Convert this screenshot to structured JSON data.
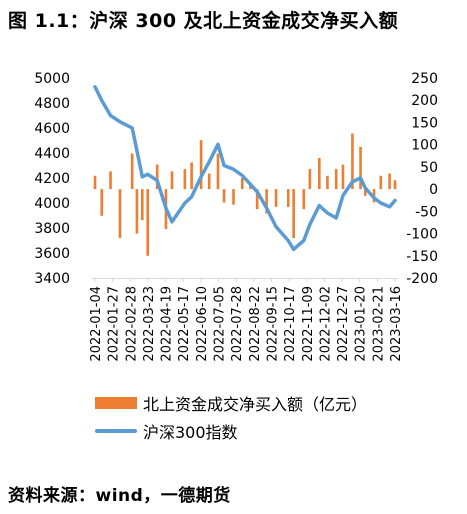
{
  "header": {
    "title": "图 1.1：沪深 300 及北上资金成交净买入额"
  },
  "footer": {
    "source": "资料来源：wind，一德期货"
  },
  "colors": {
    "bar": "#ED7D31",
    "line": "#5B9BD5",
    "axis": "#d9d9d9"
  },
  "chart_data": {
    "type": "bar+line",
    "title": "",
    "x_tick_labels": [
      "2022-01-04",
      "2022-01-27",
      "2022-02-28",
      "2022-03-23",
      "2022-04-19",
      "2022-05-17",
      "2022-06-10",
      "2022-07-05",
      "2022-07-28",
      "2022-08-22",
      "2022-09-15",
      "2022-10-17",
      "2022-11-09",
      "2022-12-02",
      "2022-12-27",
      "2023-01-20",
      "2023-02-21",
      "2023-03-16"
    ],
    "y_left": {
      "min": 3400,
      "max": 5000,
      "step": 200,
      "ticks": [
        "3400",
        "3600",
        "3800",
        "4000",
        "4200",
        "4400",
        "4600",
        "4800",
        "5000"
      ]
    },
    "y_right": {
      "min": -200,
      "max": 250,
      "step": 50,
      "ticks": [
        "-200",
        "-150",
        "-100",
        "-50",
        "0",
        "50",
        "100",
        "150",
        "200",
        "250"
      ]
    },
    "legend_position": "bottom",
    "series": [
      {
        "name": "北上资金成交净买入额（亿元）",
        "type": "bar",
        "axis": "right",
        "x": [
          "2022-01-04",
          "2022-01-14",
          "2022-01-27",
          "2022-02-10",
          "2022-02-28",
          "2022-03-07",
          "2022-03-15",
          "2022-03-23",
          "2022-04-06",
          "2022-04-19",
          "2022-04-28",
          "2022-05-17",
          "2022-05-27",
          "2022-06-10",
          "2022-06-22",
          "2022-07-05",
          "2022-07-14",
          "2022-07-28",
          "2022-08-10",
          "2022-08-22",
          "2022-09-01",
          "2022-09-15",
          "2022-09-29",
          "2022-10-17",
          "2022-10-25",
          "2022-11-09",
          "2022-11-18",
          "2022-12-02",
          "2022-12-14",
          "2022-12-27",
          "2023-01-06",
          "2023-01-20",
          "2023-02-01",
          "2023-02-08",
          "2023-02-21",
          "2023-03-03",
          "2023-03-16",
          "2023-03-24"
        ],
        "values": [
          30,
          -60,
          40,
          -110,
          80,
          -100,
          -70,
          -150,
          55,
          -90,
          40,
          45,
          60,
          110,
          35,
          80,
          -30,
          -35,
          25,
          15,
          -45,
          -55,
          -40,
          -40,
          -110,
          -45,
          45,
          70,
          30,
          45,
          55,
          125,
          95,
          -15,
          -30,
          30,
          35,
          20
        ]
      },
      {
        "name": "沪深300指数",
        "type": "line",
        "axis": "left",
        "x": [
          "2022-01-04",
          "2022-01-14",
          "2022-01-27",
          "2022-02-10",
          "2022-02-28",
          "2022-03-07",
          "2022-03-15",
          "2022-03-23",
          "2022-04-06",
          "2022-04-19",
          "2022-04-28",
          "2022-05-17",
          "2022-05-27",
          "2022-06-10",
          "2022-06-22",
          "2022-07-05",
          "2022-07-14",
          "2022-07-28",
          "2022-08-10",
          "2022-08-22",
          "2022-09-01",
          "2022-09-15",
          "2022-09-29",
          "2022-10-17",
          "2022-10-25",
          "2022-11-09",
          "2022-11-18",
          "2022-12-02",
          "2022-12-14",
          "2022-12-27",
          "2023-01-06",
          "2023-01-20",
          "2023-02-01",
          "2023-02-08",
          "2023-02-21",
          "2023-03-03",
          "2023-03-16",
          "2023-03-24"
        ],
        "values": [
          4930,
          4820,
          4700,
          4650,
          4600,
          4420,
          4210,
          4230,
          4180,
          3960,
          3850,
          4000,
          4050,
          4210,
          4330,
          4470,
          4300,
          4270,
          4220,
          4150,
          4090,
          3960,
          3810,
          3700,
          3630,
          3700,
          3830,
          3980,
          3920,
          3880,
          4060,
          4170,
          4200,
          4120,
          4040,
          4000,
          3970,
          4020
        ]
      }
    ]
  }
}
